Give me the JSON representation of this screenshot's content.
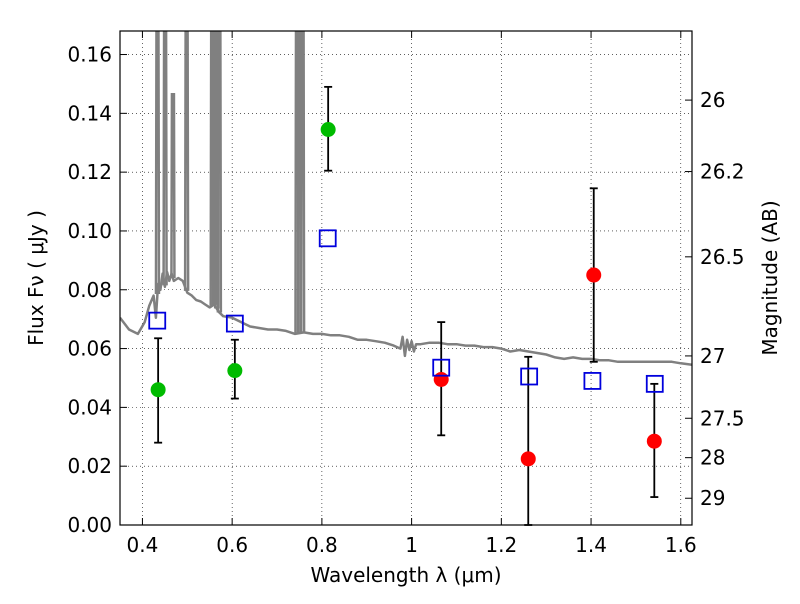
{
  "chart_data": {
    "type": "scatter",
    "xlabel": "Wavelength  λ (μm)",
    "ylabel": "Flux  Fν  ( μJy )",
    "ylabel_right": "Magnitude (AB)",
    "xlim": [
      0.35,
      1.625
    ],
    "ylim": [
      0.0,
      0.168
    ],
    "grid": true,
    "x_ticks": [
      0.4,
      0.6,
      0.8,
      1.0,
      1.2,
      1.4,
      1.6
    ],
    "x_tick_labels": [
      "0.4",
      "0.6",
      "0.8",
      "1",
      "1.2",
      "1.4",
      "1.6"
    ],
    "y_ticks": [
      0.0,
      0.02,
      0.04,
      0.06,
      0.08,
      0.1,
      0.12,
      0.14,
      0.16
    ],
    "y_tick_labels": [
      "0.00",
      "0.02",
      "0.04",
      "0.06",
      "0.08",
      "0.10",
      "0.12",
      "0.14",
      "0.16"
    ],
    "right_axis_ticks": [
      {
        "flux": 0.1445,
        "label": "26"
      },
      {
        "flux": 0.1202,
        "label": "26.2"
      },
      {
        "flux": 0.0912,
        "label": "26.5"
      },
      {
        "flux": 0.0575,
        "label": "27"
      },
      {
        "flux": 0.0363,
        "label": "27.5"
      },
      {
        "flux": 0.0229,
        "label": "28"
      },
      {
        "flux": 0.0091,
        "label": "29"
      }
    ],
    "series": [
      {
        "marker": "circle",
        "color": "#00bb00",
        "points": [
          {
            "x": 0.435,
            "y": 0.046,
            "err_low": 0.028,
            "err_high": 0.0635
          },
          {
            "x": 0.606,
            "y": 0.0525,
            "err_low": 0.043,
            "err_high": 0.063
          },
          {
            "x": 0.814,
            "y": 0.1345,
            "err_low": 0.1205,
            "err_high": 0.149
          }
        ]
      },
      {
        "marker": "circle",
        "color": "#ff0000",
        "points": [
          {
            "x": 1.066,
            "y": 0.0495,
            "err_low": 0.0305,
            "err_high": 0.069
          },
          {
            "x": 1.26,
            "y": 0.0225,
            "err_low": 0.0,
            "err_high": 0.0572
          },
          {
            "x": 1.406,
            "y": 0.085,
            "err_low": 0.0555,
            "err_high": 0.1145
          },
          {
            "x": 1.541,
            "y": 0.0285,
            "err_low": 0.0095,
            "err_high": 0.048
          }
        ]
      },
      {
        "marker": "open-square",
        "color": "#0000dd",
        "points": [
          {
            "x": 0.433,
            "y": 0.0695
          },
          {
            "x": 0.606,
            "y": 0.0685
          },
          {
            "x": 0.813,
            "y": 0.0975
          },
          {
            "x": 1.066,
            "y": 0.0535
          },
          {
            "x": 1.262,
            "y": 0.0505
          },
          {
            "x": 1.403,
            "y": 0.049
          },
          {
            "x": 1.542,
            "y": 0.048
          }
        ]
      },
      {
        "marker": "line",
        "color": "#808080",
        "points": [
          [
            0.35,
            0.0705
          ],
          [
            0.37,
            0.0665
          ],
          [
            0.39,
            0.065
          ],
          [
            0.405,
            0.069
          ],
          [
            0.415,
            0.0745
          ],
          [
            0.425,
            0.078
          ],
          [
            0.43,
            0.0705
          ],
          [
            0.435,
            0.082
          ],
          [
            0.44,
            0.08
          ],
          [
            0.445,
            0.0855
          ],
          [
            0.45,
            0.081
          ],
          [
            0.455,
            0.086
          ],
          [
            0.46,
            0.083
          ],
          [
            0.465,
            0.0855
          ],
          [
            0.47,
            0.083
          ],
          [
            0.48,
            0.084
          ],
          [
            0.49,
            0.083
          ],
          [
            0.5,
            0.079
          ],
          [
            0.51,
            0.078
          ],
          [
            0.52,
            0.0765
          ],
          [
            0.53,
            0.076
          ],
          [
            0.54,
            0.075
          ],
          [
            0.55,
            0.074
          ],
          [
            0.56,
            0.075
          ],
          [
            0.57,
            0.0725
          ],
          [
            0.58,
            0.071
          ],
          [
            0.6,
            0.0705
          ],
          [
            0.62,
            0.069
          ],
          [
            0.64,
            0.0675
          ],
          [
            0.66,
            0.067
          ],
          [
            0.68,
            0.0665
          ],
          [
            0.7,
            0.0665
          ],
          [
            0.72,
            0.066
          ],
          [
            0.74,
            0.065
          ],
          [
            0.76,
            0.0655
          ],
          [
            0.78,
            0.065
          ],
          [
            0.8,
            0.065
          ],
          [
            0.82,
            0.0645
          ],
          [
            0.84,
            0.0645
          ],
          [
            0.86,
            0.064
          ],
          [
            0.88,
            0.063
          ],
          [
            0.9,
            0.063
          ],
          [
            0.92,
            0.0625
          ],
          [
            0.94,
            0.062
          ],
          [
            0.96,
            0.061
          ],
          [
            0.975,
            0.06
          ],
          [
            0.98,
            0.064
          ],
          [
            0.985,
            0.0575
          ],
          [
            0.99,
            0.063
          ],
          [
            0.995,
            0.0595
          ],
          [
            1.0,
            0.0625
          ],
          [
            1.005,
            0.059
          ],
          [
            1.01,
            0.0615
          ],
          [
            1.02,
            0.0615
          ],
          [
            1.04,
            0.062
          ],
          [
            1.06,
            0.062
          ],
          [
            1.08,
            0.0615
          ],
          [
            1.1,
            0.0615
          ],
          [
            1.12,
            0.061
          ],
          [
            1.14,
            0.061
          ],
          [
            1.16,
            0.0605
          ],
          [
            1.18,
            0.0605
          ],
          [
            1.2,
            0.06
          ],
          [
            1.22,
            0.059
          ],
          [
            1.24,
            0.0595
          ],
          [
            1.26,
            0.059
          ],
          [
            1.28,
            0.0585
          ],
          [
            1.3,
            0.058
          ],
          [
            1.32,
            0.057
          ],
          [
            1.34,
            0.0565
          ],
          [
            1.36,
            0.057
          ],
          [
            1.38,
            0.0565
          ],
          [
            1.4,
            0.0565
          ],
          [
            1.42,
            0.056
          ],
          [
            1.44,
            0.056
          ],
          [
            1.46,
            0.0555
          ],
          [
            1.48,
            0.0555
          ],
          [
            1.5,
            0.0555
          ],
          [
            1.52,
            0.0555
          ],
          [
            1.54,
            0.0555
          ],
          [
            1.56,
            0.0555
          ],
          [
            1.58,
            0.0555
          ],
          [
            1.6,
            0.055
          ],
          [
            1.625,
            0.0545
          ]
        ],
        "emission_lines": [
          {
            "x": 0.4335,
            "peak": 0.168
          },
          {
            "x": 0.4505,
            "peak": 0.168
          },
          {
            "x": 0.468,
            "peak": 0.1465
          },
          {
            "x": 0.4985,
            "peak": 0.168
          },
          {
            "x": 0.5555,
            "peak": 0.168
          },
          {
            "x": 0.5605,
            "peak": 0.168
          },
          {
            "x": 0.5655,
            "peak": 0.168
          },
          {
            "x": 0.5715,
            "peak": 0.168
          },
          {
            "x": 0.7445,
            "peak": 0.168
          },
          {
            "x": 0.75,
            "peak": 0.168
          },
          {
            "x": 0.757,
            "peak": 0.168
          }
        ]
      }
    ]
  }
}
